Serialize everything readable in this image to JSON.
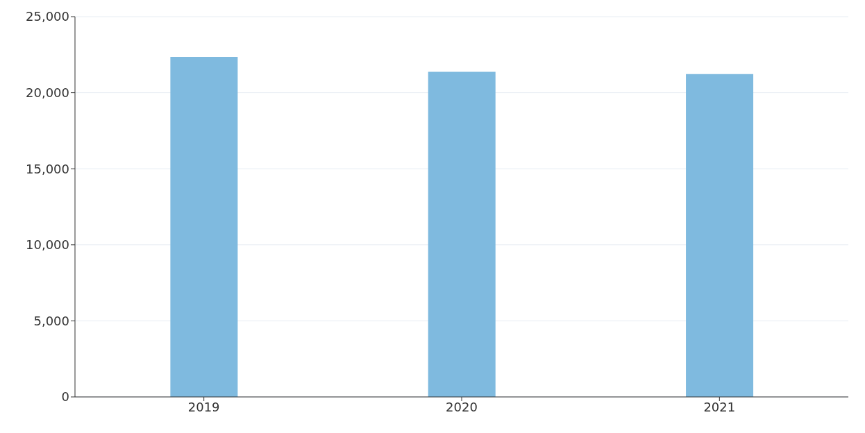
{
  "chart_data": {
    "type": "bar",
    "categories": [
      "2019",
      "2020",
      "2021"
    ],
    "values": [
      22350,
      21370,
      21230
    ],
    "color": "#7fbadf",
    "ylim": [
      0,
      25000
    ],
    "yticks": [
      {
        "value": 0,
        "label": "0"
      },
      {
        "value": 5000,
        "label": "5,000"
      },
      {
        "value": 10000,
        "label": "10,000"
      },
      {
        "value": 15000,
        "label": "15,000"
      },
      {
        "value": 20000,
        "label": "20,000"
      },
      {
        "value": 25000,
        "label": "25,000"
      }
    ],
    "grid": "y"
  }
}
